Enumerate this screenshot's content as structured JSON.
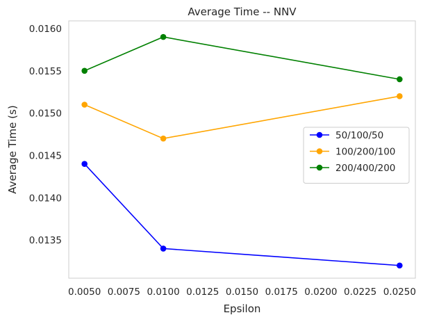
{
  "chart_data": {
    "type": "line",
    "title": "Average Time -- NNV",
    "xlabel": "Epsilon",
    "ylabel": "Average Time (s)",
    "x": [
      0.005,
      0.01,
      0.025
    ],
    "xlim": [
      0.004,
      0.026
    ],
    "ylim": [
      0.01305,
      0.01609
    ],
    "xticks": [
      "0.0050",
      "0.0075",
      "0.0100",
      "0.0125",
      "0.0150",
      "0.0175",
      "0.0200",
      "0.0225",
      "0.0250"
    ],
    "yticks": [
      "0.0135",
      "0.0140",
      "0.0145",
      "0.0150",
      "0.0155",
      "0.0160"
    ],
    "grid": false,
    "legend_position": "center-right",
    "series": [
      {
        "name": "50/100/50",
        "color": "#0000ff",
        "values": [
          0.0144,
          0.0134,
          0.0132
        ]
      },
      {
        "name": "100/200/100",
        "color": "#ffa500",
        "values": [
          0.0151,
          0.0147,
          0.0152
        ]
      },
      {
        "name": "200/400/200",
        "color": "#008000",
        "values": [
          0.0155,
          0.0159,
          0.0154
        ]
      }
    ]
  }
}
